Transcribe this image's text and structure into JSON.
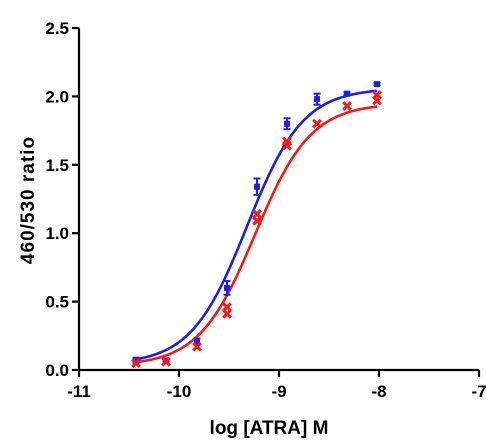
{
  "chart_data": {
    "type": "scatter",
    "xlabel": "log [ATRA] M",
    "ylabel": "460/530  ratio",
    "xlim": [
      -11,
      -7
    ],
    "ylim": [
      0,
      2.5
    ],
    "x_ticks": [
      "-11",
      "-10",
      "-9",
      "-8",
      "-7"
    ],
    "y_ticks": [
      "0.0",
      "0.5",
      "1.0",
      "1.5",
      "2.0",
      "2.5"
    ],
    "grid": false,
    "series": [
      {
        "color": "#1f1fe0",
        "marker": "square",
        "x": [
          -10.43,
          -10.13,
          -9.82,
          -9.52,
          -9.22,
          -8.92,
          -8.62,
          -8.32,
          -8.02
        ],
        "y": [
          0.07,
          0.07,
          0.21,
          0.6,
          1.34,
          1.8,
          1.98,
          2.02,
          2.09
        ],
        "err": [
          0.02,
          0.01,
          0.02,
          0.05,
          0.06,
          0.04,
          0.04,
          0.01,
          0.01
        ],
        "fit": {
          "bottom": 0.04,
          "top": 2.06,
          "logEC50": -9.32,
          "hill": 1.55
        }
      },
      {
        "color": "#ee1c1c",
        "marker": "x",
        "x": [
          -10.43,
          -10.13,
          -9.82,
          -9.52,
          -9.52,
          -9.22,
          -9.22,
          -8.92,
          -8.92,
          -8.62,
          -8.32,
          -8.02,
          -8.02
        ],
        "y": [
          0.05,
          0.06,
          0.17,
          0.41,
          0.46,
          1.09,
          1.14,
          1.64,
          1.67,
          1.8,
          1.93,
          1.97,
          2.01
        ],
        "err": [],
        "fit": {
          "bottom": 0.03,
          "top": 1.95,
          "logEC50": -9.24,
          "hill": 1.55
        }
      }
    ]
  }
}
